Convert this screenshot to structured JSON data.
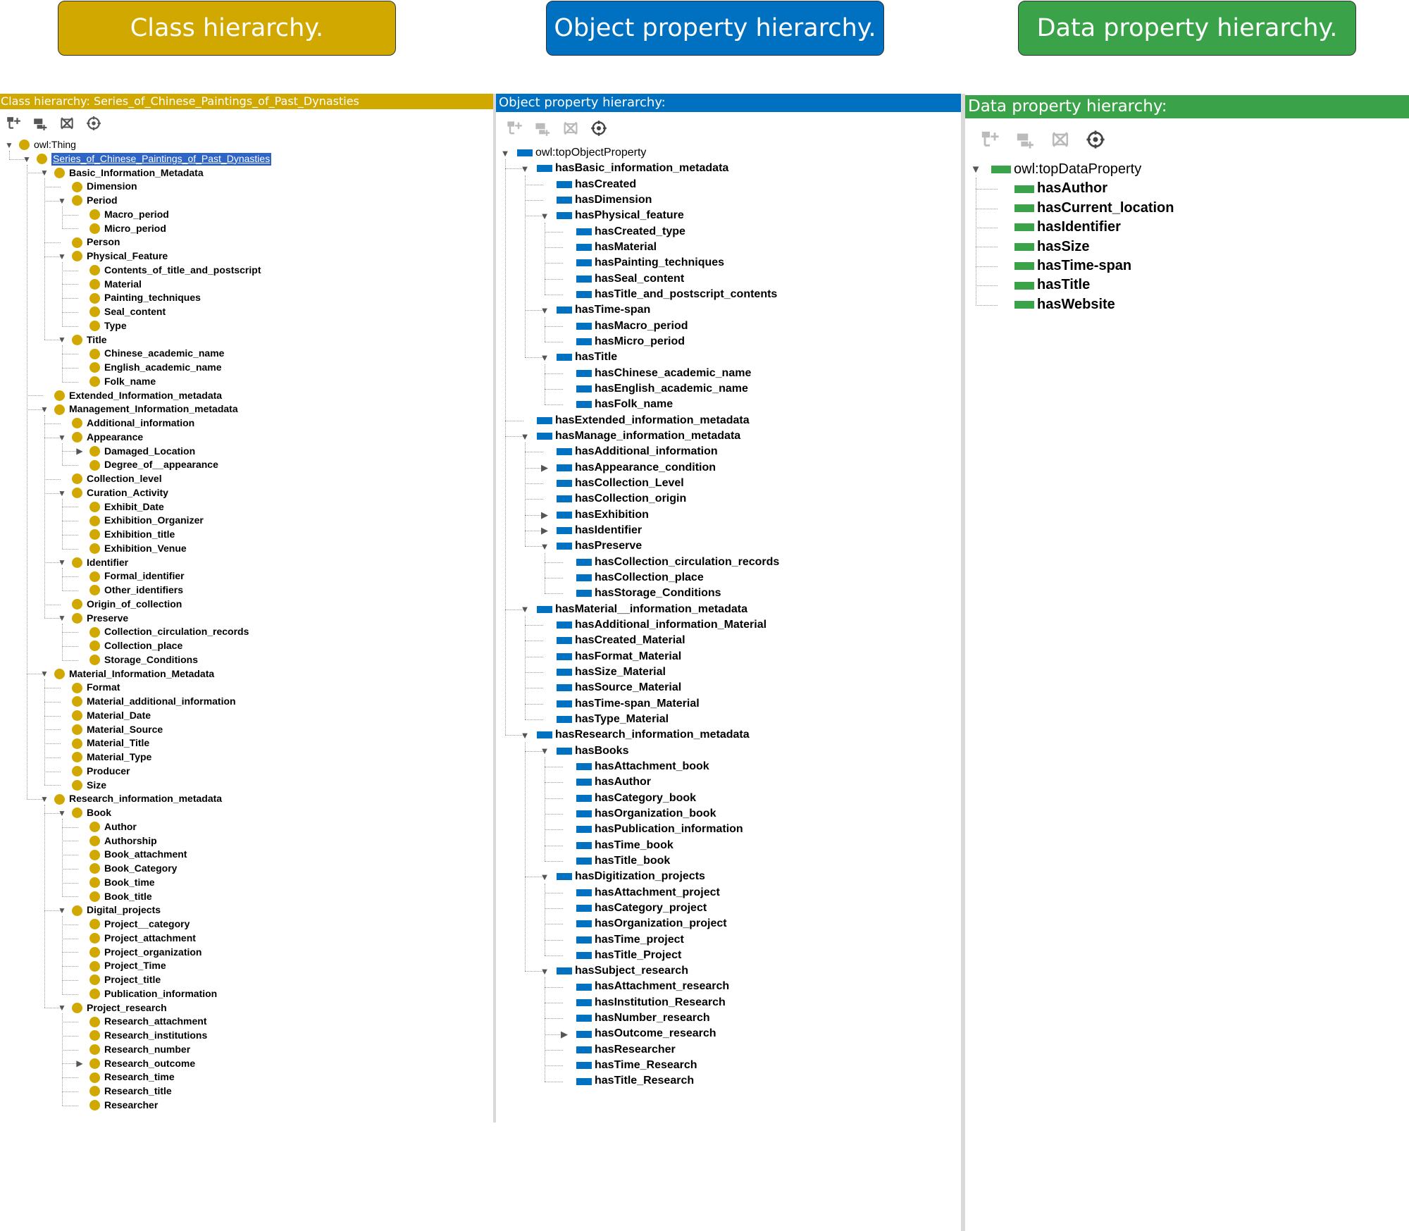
{
  "banners": {
    "class": "Class hierarchy.",
    "object": "Object property hierarchy.",
    "data": "Data property hierarchy."
  },
  "colors": {
    "class": "#d1a800",
    "object": "#0070c0",
    "data": "#3aa34a"
  },
  "class_panel": {
    "title": "Class hierarchy: Series_of_Chinese_Paintings_of_Past_Dynasties",
    "toolbar": [
      "add-subclass-icon",
      "add-sibling-class-icon",
      "delete-class-icon",
      "target-icon"
    ],
    "tree": [
      {
        "d": 0,
        "t": "owl:Thing",
        "e": "open",
        "plain": true
      },
      {
        "d": 1,
        "t": "Series_of_Chinese_Paintings_of_Past_Dynasties",
        "e": "open",
        "plain": true,
        "sel": true
      },
      {
        "d": 2,
        "t": "Basic_Information_Metadata",
        "e": "open"
      },
      {
        "d": 3,
        "t": "Dimension"
      },
      {
        "d": 3,
        "t": "Period",
        "e": "open"
      },
      {
        "d": 4,
        "t": "Macro_period"
      },
      {
        "d": 4,
        "t": "Micro_period"
      },
      {
        "d": 3,
        "t": "Person"
      },
      {
        "d": 3,
        "t": "Physical_Feature",
        "e": "open"
      },
      {
        "d": 4,
        "t": "Contents_of_title_and_postscript"
      },
      {
        "d": 4,
        "t": "Material"
      },
      {
        "d": 4,
        "t": "Painting_techniques"
      },
      {
        "d": 4,
        "t": "Seal_content"
      },
      {
        "d": 4,
        "t": "Type"
      },
      {
        "d": 3,
        "t": "Title",
        "e": "open"
      },
      {
        "d": 4,
        "t": "Chinese_academic_name"
      },
      {
        "d": 4,
        "t": "English_academic_name"
      },
      {
        "d": 4,
        "t": "Folk_name"
      },
      {
        "d": 2,
        "t": "Extended_Information_metadata"
      },
      {
        "d": 2,
        "t": "Management_Information_metadata",
        "e": "open"
      },
      {
        "d": 3,
        "t": "Additional_information"
      },
      {
        "d": 3,
        "t": "Appearance",
        "e": "open"
      },
      {
        "d": 4,
        "t": "Damaged_Location",
        "e": "closed"
      },
      {
        "d": 4,
        "t": "Degree_of__appearance"
      },
      {
        "d": 3,
        "t": "Collection_level"
      },
      {
        "d": 3,
        "t": "Curation_Activity",
        "e": "open"
      },
      {
        "d": 4,
        "t": "Exhibit_Date"
      },
      {
        "d": 4,
        "t": "Exhibition_Organizer"
      },
      {
        "d": 4,
        "t": "Exhibition_title"
      },
      {
        "d": 4,
        "t": "Exhibition_Venue"
      },
      {
        "d": 3,
        "t": "Identifier",
        "e": "open"
      },
      {
        "d": 4,
        "t": "Formal_identifier"
      },
      {
        "d": 4,
        "t": "Other_identifiers"
      },
      {
        "d": 3,
        "t": "Origin_of_collection"
      },
      {
        "d": 3,
        "t": "Preserve",
        "e": "open"
      },
      {
        "d": 4,
        "t": "Collection_circulation_records"
      },
      {
        "d": 4,
        "t": "Collection_place"
      },
      {
        "d": 4,
        "t": "Storage_Conditions"
      },
      {
        "d": 2,
        "t": "Material_Information_Metadata",
        "e": "open"
      },
      {
        "d": 3,
        "t": "Format"
      },
      {
        "d": 3,
        "t": "Material_additional_information"
      },
      {
        "d": 3,
        "t": "Material_Date"
      },
      {
        "d": 3,
        "t": "Material_Source"
      },
      {
        "d": 3,
        "t": "Material_Title"
      },
      {
        "d": 3,
        "t": "Material_Type"
      },
      {
        "d": 3,
        "t": "Producer"
      },
      {
        "d": 3,
        "t": "Size"
      },
      {
        "d": 2,
        "t": "Research_information_metadata",
        "e": "open"
      },
      {
        "d": 3,
        "t": "Book",
        "e": "open"
      },
      {
        "d": 4,
        "t": "Author"
      },
      {
        "d": 4,
        "t": "Authorship"
      },
      {
        "d": 4,
        "t": "Book_attachment"
      },
      {
        "d": 4,
        "t": "Book_Category"
      },
      {
        "d": 4,
        "t": "Book_time"
      },
      {
        "d": 4,
        "t": "Book_title"
      },
      {
        "d": 3,
        "t": "Digital_projects",
        "e": "open"
      },
      {
        "d": 4,
        "t": "Project__category"
      },
      {
        "d": 4,
        "t": "Project_attachment"
      },
      {
        "d": 4,
        "t": "Project_organization"
      },
      {
        "d": 4,
        "t": "Project_Time"
      },
      {
        "d": 4,
        "t": "Project_title"
      },
      {
        "d": 4,
        "t": "Publication_information"
      },
      {
        "d": 3,
        "t": "Project_research",
        "e": "open"
      },
      {
        "d": 4,
        "t": "Research_attachment"
      },
      {
        "d": 4,
        "t": "Research_institutions"
      },
      {
        "d": 4,
        "t": "Research_number"
      },
      {
        "d": 4,
        "t": "Research_outcome",
        "e": "closed"
      },
      {
        "d": 4,
        "t": "Research_time"
      },
      {
        "d": 4,
        "t": "Research_title"
      },
      {
        "d": 4,
        "t": "Researcher"
      }
    ]
  },
  "object_panel": {
    "title": "Object property hierarchy:",
    "toolbar": [
      "add-subproperty-icon",
      "add-sibling-property-icon",
      "delete-property-icon",
      "target-icon"
    ],
    "tree": [
      {
        "d": 0,
        "t": "owl:topObjectProperty",
        "e": "open",
        "plain": true
      },
      {
        "d": 1,
        "t": "hasBasic_information_metadata",
        "e": "open"
      },
      {
        "d": 2,
        "t": "hasCreated"
      },
      {
        "d": 2,
        "t": "hasDimension"
      },
      {
        "d": 2,
        "t": "hasPhysical_feature",
        "e": "open"
      },
      {
        "d": 3,
        "t": "hasCreated_type"
      },
      {
        "d": 3,
        "t": "hasMaterial"
      },
      {
        "d": 3,
        "t": "hasPainting_techniques"
      },
      {
        "d": 3,
        "t": "hasSeal_content"
      },
      {
        "d": 3,
        "t": "hasTitle_and_postscript_contents"
      },
      {
        "d": 2,
        "t": "hasTime-span",
        "e": "open"
      },
      {
        "d": 3,
        "t": "hasMacro_period"
      },
      {
        "d": 3,
        "t": "hasMicro_period"
      },
      {
        "d": 2,
        "t": "hasTitle",
        "e": "open"
      },
      {
        "d": 3,
        "t": "hasChinese_academic_name"
      },
      {
        "d": 3,
        "t": "hasEnglish_academic_name"
      },
      {
        "d": 3,
        "t": "hasFolk_name"
      },
      {
        "d": 1,
        "t": "hasExtended_information_metadata"
      },
      {
        "d": 1,
        "t": "hasManage_information_metadata",
        "e": "open"
      },
      {
        "d": 2,
        "t": "hasAdditional_information"
      },
      {
        "d": 2,
        "t": "hasAppearance_condition",
        "e": "closed"
      },
      {
        "d": 2,
        "t": "hasCollection_Level"
      },
      {
        "d": 2,
        "t": "hasCollection_origin"
      },
      {
        "d": 2,
        "t": "hasExhibition",
        "e": "closed"
      },
      {
        "d": 2,
        "t": "hasIdentifier",
        "e": "closed"
      },
      {
        "d": 2,
        "t": "hasPreserve",
        "e": "open"
      },
      {
        "d": 3,
        "t": "hasCollection_circulation_records"
      },
      {
        "d": 3,
        "t": "hasCollection_place"
      },
      {
        "d": 3,
        "t": "hasStorage_Conditions"
      },
      {
        "d": 1,
        "t": "hasMaterial__information_metadata",
        "e": "open"
      },
      {
        "d": 2,
        "t": "hasAdditional_information_Material"
      },
      {
        "d": 2,
        "t": "hasCreated_Material"
      },
      {
        "d": 2,
        "t": "hasFormat_Material"
      },
      {
        "d": 2,
        "t": "hasSize_Material"
      },
      {
        "d": 2,
        "t": "hasSource_Material"
      },
      {
        "d": 2,
        "t": "hasTime-span_Material"
      },
      {
        "d": 2,
        "t": "hasType_Material"
      },
      {
        "d": 1,
        "t": "hasResearch_information_metadata",
        "e": "open"
      },
      {
        "d": 2,
        "t": "hasBooks",
        "e": "open"
      },
      {
        "d": 3,
        "t": "hasAttachment_book"
      },
      {
        "d": 3,
        "t": "hasAuthor"
      },
      {
        "d": 3,
        "t": "hasCategory_book"
      },
      {
        "d": 3,
        "t": "hasOrganization_book"
      },
      {
        "d": 3,
        "t": "hasPublication_information"
      },
      {
        "d": 3,
        "t": "hasTime_book"
      },
      {
        "d": 3,
        "t": "hasTitle_book"
      },
      {
        "d": 2,
        "t": "hasDigitization_projects",
        "e": "open"
      },
      {
        "d": 3,
        "t": "hasAttachment_project"
      },
      {
        "d": 3,
        "t": "hasCategory_project"
      },
      {
        "d": 3,
        "t": "hasOrganization_project"
      },
      {
        "d": 3,
        "t": "hasTime_project"
      },
      {
        "d": 3,
        "t": "hasTitle_Project"
      },
      {
        "d": 2,
        "t": "hasSubject_research",
        "e": "open"
      },
      {
        "d": 3,
        "t": "hasAttachment_research"
      },
      {
        "d": 3,
        "t": "hasInstitution_Research"
      },
      {
        "d": 3,
        "t": "hasNumber_research"
      },
      {
        "d": 3,
        "t": "hasOutcome_research",
        "e": "closed"
      },
      {
        "d": 3,
        "t": "hasResearcher"
      },
      {
        "d": 3,
        "t": "hasTime_Research"
      },
      {
        "d": 3,
        "t": "hasTitle_Research"
      }
    ]
  },
  "data_panel": {
    "title": "Data property hierarchy:",
    "toolbar": [
      "add-subproperty-icon",
      "add-sibling-property-icon",
      "delete-property-icon",
      "target-icon"
    ],
    "tree": [
      {
        "d": 0,
        "t": "owl:topDataProperty",
        "e": "open",
        "plain": true
      },
      {
        "d": 1,
        "t": "hasAuthor"
      },
      {
        "d": 1,
        "t": "hasCurrent_location"
      },
      {
        "d": 1,
        "t": "hasIdentifier"
      },
      {
        "d": 1,
        "t": "hasSize"
      },
      {
        "d": 1,
        "t": "hasTime-span"
      },
      {
        "d": 1,
        "t": "hasTitle"
      },
      {
        "d": 1,
        "t": "hasWebsite"
      }
    ]
  }
}
